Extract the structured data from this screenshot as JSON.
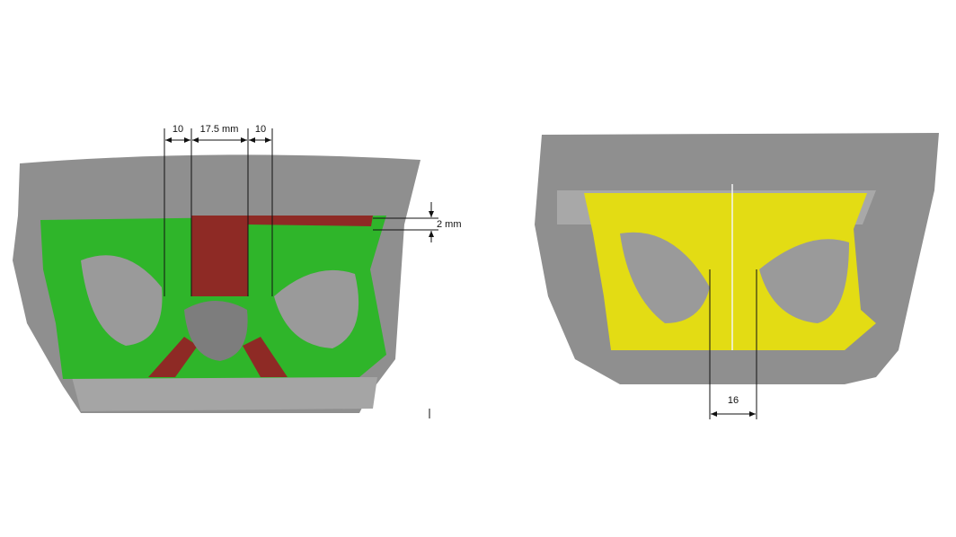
{
  "left_panel": {
    "dimensions": [
      "10",
      "17.5 mm",
      "10",
      "2 mm"
    ]
  },
  "right_panel": {
    "dimensions": [
      "16"
    ]
  }
}
